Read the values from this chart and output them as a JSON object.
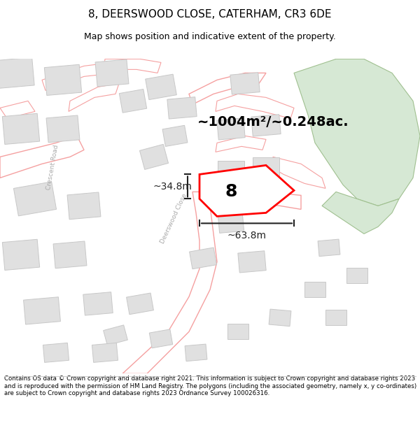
{
  "title_line1": "8, DEERSWOOD CLOSE, CATERHAM, CR3 6DE",
  "title_line2": "Map shows position and indicative extent of the property.",
  "footer_text": "Contains OS data © Crown copyright and database right 2021. This information is subject to Crown copyright and database rights 2023 and is reproduced with the permission of HM Land Registry. The polygons (including the associated geometry, namely x, y co-ordinates) are subject to Crown copyright and database rights 2023 Ordnance Survey 100026316.",
  "area_label": "~1004m²/~0.248ac.",
  "width_label": "~63.8m",
  "height_label": "~34.8m",
  "plot_number": "8",
  "bg_color": "#ffffff",
  "map_bg": "#f5f5f5",
  "road_color": "#f5a0a0",
  "road_fill": "#ffffff",
  "building_fill": "#e0e0e0",
  "building_edge": "#c8c8c8",
  "highlight_fill": "#d6e8d4",
  "highlight_edge": "#a0c090",
  "plot_fill": "#ffffff",
  "plot_edge": "#ff0000",
  "dim_color": "#222222",
  "road_label_color": "#bbbbbb",
  "text_color": "#000000"
}
